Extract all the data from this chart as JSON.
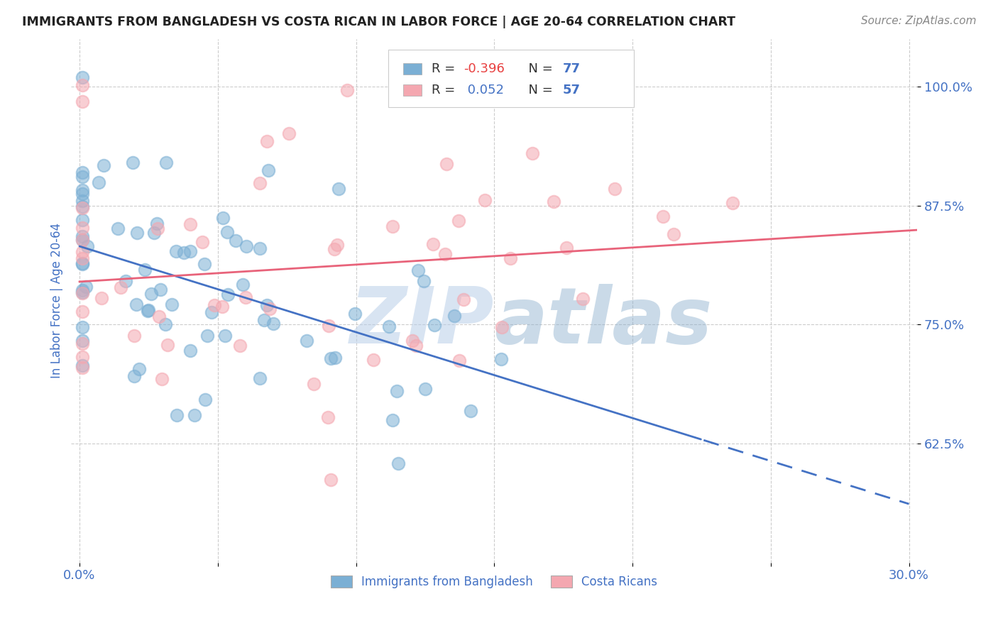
{
  "title": "IMMIGRANTS FROM BANGLADESH VS COSTA RICAN IN LABOR FORCE | AGE 20-64 CORRELATION CHART",
  "source": "Source: ZipAtlas.com",
  "ylabel": "In Labor Force | Age 20-64",
  "xmin": 0.0,
  "xmax": 0.3,
  "ymin": 0.5,
  "ymax": 1.05,
  "yticks": [
    0.625,
    0.75,
    0.875,
    1.0
  ],
  "ytick_labels": [
    "62.5%",
    "75.0%",
    "87.5%",
    "100.0%"
  ],
  "xticks": [
    0.0,
    0.05,
    0.1,
    0.15,
    0.2,
    0.25,
    0.3
  ],
  "xtick_labels": [
    "0.0%",
    "",
    "",
    "",
    "",
    "",
    "30.0%"
  ],
  "bangladesh_R": -0.396,
  "bangladesh_N": 77,
  "costarica_R": 0.052,
  "costarica_N": 57,
  "blue_color": "#7BAFD4",
  "pink_color": "#F4A7B0",
  "blue_line_color": "#4472C4",
  "pink_line_color": "#E8637A",
  "watermark": "ZIPAtlas",
  "watermark_color": "#C5D8EE",
  "background_color": "#FFFFFF",
  "title_color": "#222222",
  "axis_label_color": "#4472C4",
  "tick_label_color": "#4472C4",
  "legend_text_color": "#4472C4",
  "legend_r_neg_color": "#E84040",
  "legend_r_pos_color": "#4472C4"
}
